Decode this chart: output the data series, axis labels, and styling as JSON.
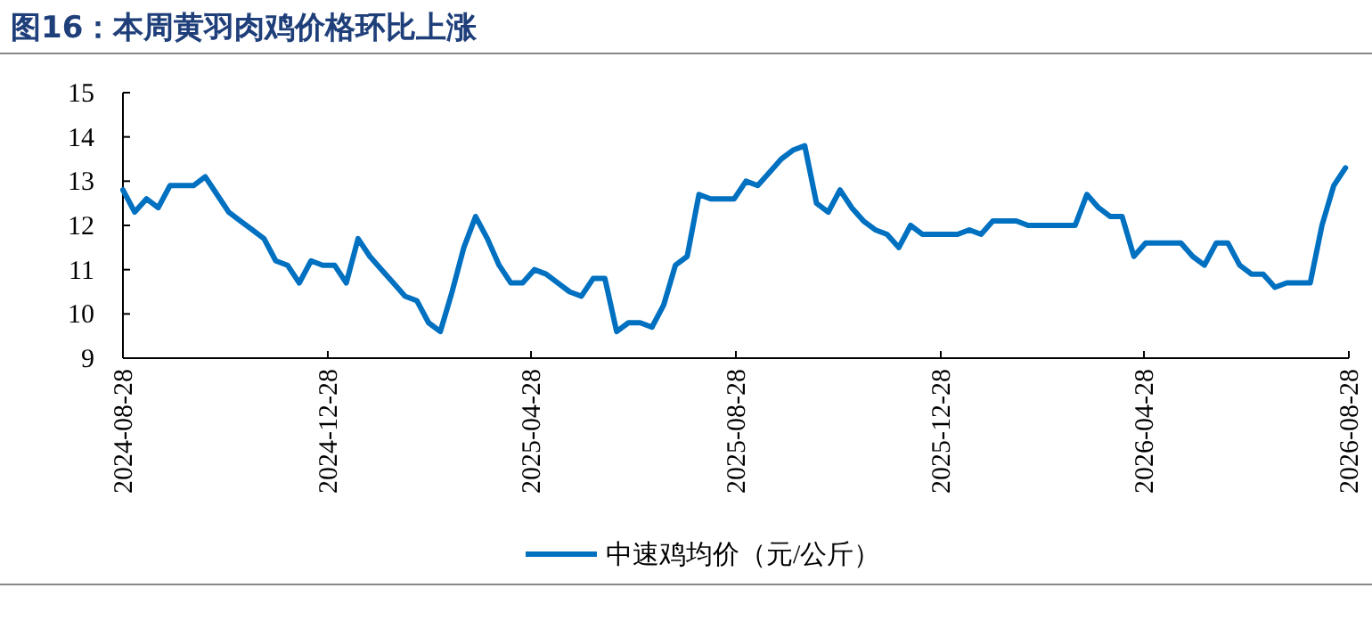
{
  "chart_data": {
    "type": "line",
    "title": "图16：本周黄羽肉鸡价格环比上涨",
    "x": [
      "2024-08-28",
      "2024-09-04",
      "2024-09-11",
      "2024-09-18",
      "2024-09-25",
      "2024-10-02",
      "2024-10-09",
      "2024-10-16",
      "2024-10-23",
      "2024-10-30",
      "2024-11-06",
      "2024-11-13",
      "2024-11-20",
      "2024-11-27",
      "2024-12-04",
      "2024-12-11",
      "2024-12-18",
      "2024-12-25",
      "2025-01-01",
      "2025-01-08",
      "2025-01-15",
      "2025-01-22",
      "2025-01-29",
      "2025-02-05",
      "2025-02-12",
      "2025-02-19",
      "2025-02-26",
      "2025-03-05",
      "2025-03-12",
      "2025-03-19",
      "2025-03-26",
      "2025-04-02",
      "2025-04-09",
      "2025-04-16",
      "2025-04-23",
      "2025-04-30",
      "2025-05-07",
      "2025-05-14",
      "2025-05-21",
      "2025-05-28",
      "2025-06-04",
      "2025-06-11",
      "2025-06-18",
      "2025-06-25",
      "2025-07-02",
      "2025-07-09",
      "2025-07-16",
      "2025-07-23",
      "2025-07-30",
      "2025-08-06",
      "2025-08-13",
      "2025-08-20",
      "2025-08-27",
      "2025-09-03",
      "2025-09-10",
      "2025-09-17",
      "2025-09-24",
      "2025-10-01",
      "2025-10-08",
      "2025-10-15",
      "2025-10-22",
      "2025-10-29",
      "2025-11-05",
      "2025-11-12",
      "2025-11-19",
      "2025-11-26",
      "2025-12-03",
      "2025-12-10",
      "2025-12-17",
      "2025-12-24",
      "2025-12-31",
      "2026-01-07",
      "2026-01-14",
      "2026-01-21",
      "2026-01-28",
      "2026-02-04",
      "2026-02-11",
      "2026-02-18",
      "2026-02-25",
      "2026-03-04",
      "2026-03-11",
      "2026-03-18",
      "2026-03-25",
      "2026-04-01",
      "2026-04-08",
      "2026-04-15",
      "2026-04-22",
      "2026-04-29",
      "2026-05-06",
      "2026-05-13",
      "2026-05-20",
      "2026-05-27",
      "2026-06-03",
      "2026-06-10",
      "2026-06-17",
      "2026-06-24",
      "2026-07-01",
      "2026-07-08",
      "2026-07-15",
      "2026-07-22",
      "2026-07-29",
      "2026-08-05",
      "2026-08-12",
      "2026-08-19",
      "2026-08-26"
    ],
    "series": [
      {
        "name": "中速鸡均价（元/公斤）",
        "color": "#0070c0",
        "values": [
          12.8,
          12.3,
          12.6,
          12.4,
          12.9,
          12.9,
          12.9,
          13.1,
          12.7,
          12.3,
          12.1,
          11.9,
          11.7,
          11.2,
          11.1,
          10.7,
          11.2,
          11.1,
          11.1,
          10.7,
          11.7,
          11.3,
          11.0,
          10.7,
          10.4,
          10.3,
          9.8,
          9.6,
          10.5,
          11.5,
          12.2,
          11.7,
          11.1,
          10.7,
          10.7,
          11.0,
          10.9,
          10.7,
          10.5,
          10.4,
          10.8,
          10.8,
          9.6,
          9.8,
          9.8,
          9.7,
          10.2,
          11.1,
          11.3,
          12.7,
          12.6,
          12.6,
          12.6,
          13.0,
          12.9,
          13.2,
          13.5,
          13.7,
          13.8,
          12.5,
          12.3,
          12.8,
          12.4,
          12.1,
          11.9,
          11.8,
          11.5,
          12.0,
          11.8,
          11.8,
          11.8,
          11.8,
          11.9,
          11.8,
          12.1,
          12.1,
          12.1,
          12.0,
          12.0,
          12.0,
          12.0,
          12.0,
          12.7,
          12.4,
          12.2,
          12.2,
          11.3,
          11.6,
          11.6,
          11.6,
          11.6,
          11.3,
          11.1,
          11.6,
          11.6,
          11.1,
          10.9,
          10.9,
          10.6,
          10.7,
          10.7,
          10.7,
          12.0,
          12.9,
          13.3
        ]
      }
    ],
    "xlim": [
      "2024-08-28",
      "2026-08-28"
    ],
    "xticks": [
      "2024-08-28",
      "2024-12-28",
      "2025-04-28",
      "2025-08-28",
      "2025-12-28",
      "2026-04-28",
      "2026-08-28"
    ],
    "ylim": [
      9,
      15
    ],
    "yticks": [
      9,
      10,
      11,
      12,
      13,
      14,
      15
    ],
    "grid": false,
    "legend": "bottom",
    "marker": "none",
    "line_style": "solid"
  }
}
